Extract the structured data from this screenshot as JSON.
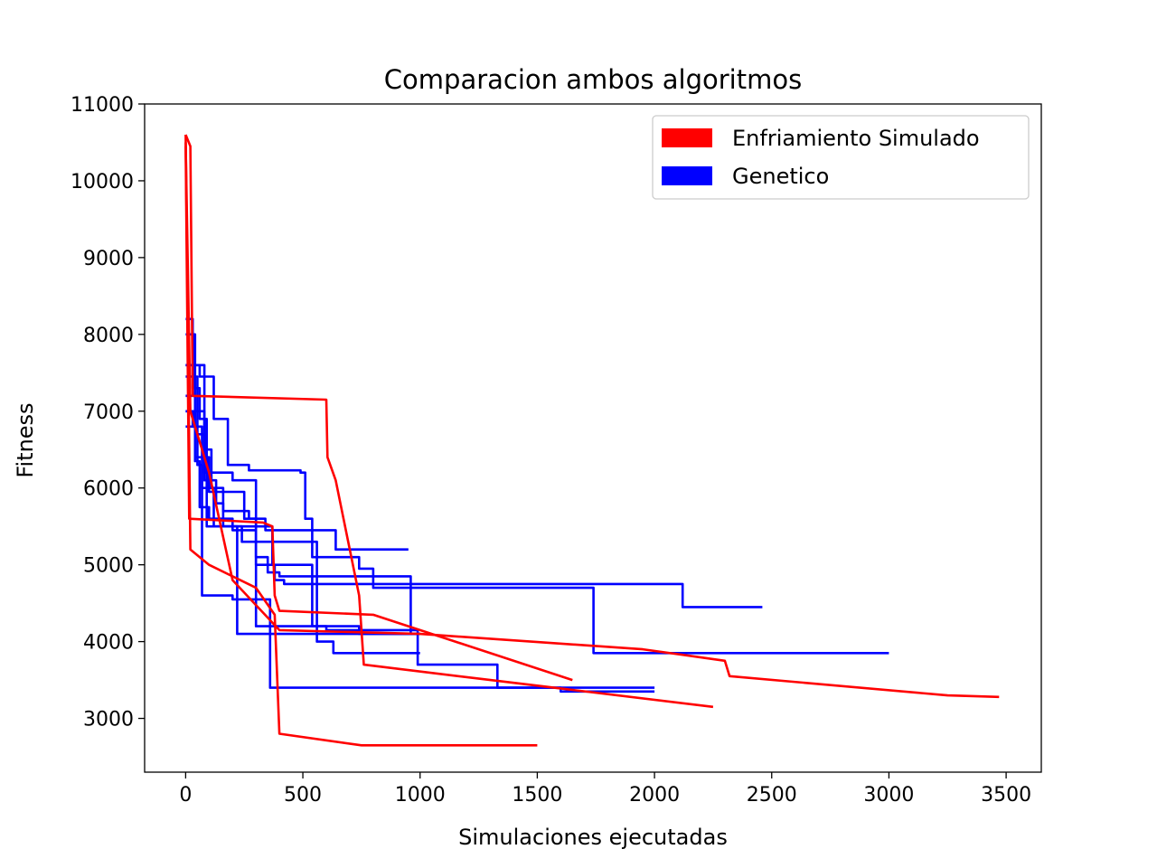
{
  "chart_data": {
    "type": "line",
    "title": "Comparacion ambos algoritmos",
    "xlabel": "Simulaciones ejecutadas",
    "ylabel": "Fitness",
    "xlim": [
      -175,
      3650
    ],
    "ylim": [
      2300,
      11000
    ],
    "xticks": [
      0,
      500,
      1000,
      1500,
      2000,
      2500,
      3000,
      3500
    ],
    "xtick_labels": [
      "0",
      "500",
      "1000",
      "1500",
      "2000",
      "2500",
      "3000",
      "3500"
    ],
    "yticks": [
      3000,
      4000,
      5000,
      6000,
      7000,
      8000,
      9000,
      10000,
      11000
    ],
    "ytick_labels": [
      "3000",
      "4000",
      "5000",
      "6000",
      "7000",
      "8000",
      "9000",
      "10000",
      "11000"
    ],
    "grid": false,
    "legend_position": "top-right",
    "legend": [
      {
        "label": "Enfriamiento Simulado",
        "color": "#ff0000"
      },
      {
        "label": "Genetico",
        "color": "#0000ff"
      }
    ],
    "series": [
      {
        "group": "Genetico",
        "color": "#0000ff",
        "points": [
          [
            0,
            6800
          ],
          [
            40,
            6800
          ],
          [
            40,
            6350
          ],
          [
            60,
            6350
          ],
          [
            60,
            5750
          ],
          [
            100,
            5750
          ],
          [
            100,
            5600
          ],
          [
            200,
            5600
          ],
          [
            200,
            5450
          ],
          [
            300,
            5450
          ],
          [
            300,
            5100
          ],
          [
            350,
            5100
          ],
          [
            350,
            4900
          ],
          [
            400,
            4900
          ],
          [
            400,
            4850
          ],
          [
            960,
            4850
          ],
          [
            960,
            4100
          ],
          [
            1000,
            4100
          ]
        ]
      },
      {
        "group": "Genetico",
        "color": "#0000ff",
        "points": [
          [
            0,
            7000
          ],
          [
            30,
            7000
          ],
          [
            30,
            6800
          ],
          [
            70,
            6800
          ],
          [
            70,
            6000
          ],
          [
            120,
            6000
          ],
          [
            120,
            5500
          ],
          [
            370,
            5500
          ],
          [
            370,
            5000
          ],
          [
            540,
            5000
          ],
          [
            540,
            4200
          ],
          [
            740,
            4200
          ],
          [
            740,
            4100
          ],
          [
            1000,
            4100
          ]
        ]
      },
      {
        "group": "Genetico",
        "color": "#0000ff",
        "points": [
          [
            0,
            7200
          ],
          [
            40,
            7200
          ],
          [
            40,
            6700
          ],
          [
            80,
            6700
          ],
          [
            80,
            6100
          ],
          [
            130,
            6100
          ],
          [
            130,
            5800
          ],
          [
            160,
            5800
          ],
          [
            160,
            5500
          ],
          [
            240,
            5500
          ],
          [
            240,
            5300
          ],
          [
            560,
            5300
          ],
          [
            560,
            4000
          ],
          [
            630,
            4000
          ],
          [
            630,
            3850
          ],
          [
            1000,
            3850
          ]
        ]
      },
      {
        "group": "Genetico",
        "color": "#0000ff",
        "points": [
          [
            0,
            8200
          ],
          [
            30,
            8200
          ],
          [
            30,
            7300
          ],
          [
            60,
            7300
          ],
          [
            60,
            6900
          ],
          [
            90,
            6900
          ],
          [
            90,
            5500
          ],
          [
            220,
            5500
          ],
          [
            220,
            4100
          ],
          [
            410,
            4100
          ],
          [
            410,
            4100
          ],
          [
            1000,
            4100
          ]
        ]
      },
      {
        "group": "Genetico",
        "color": "#0000ff",
        "points": [
          [
            0,
            7450
          ],
          [
            50,
            7450
          ],
          [
            50,
            7000
          ],
          [
            80,
            7000
          ],
          [
            80,
            6500
          ],
          [
            110,
            6500
          ],
          [
            110,
            6000
          ],
          [
            160,
            6000
          ],
          [
            160,
            5700
          ],
          [
            270,
            5700
          ],
          [
            270,
            5600
          ],
          [
            340,
            5600
          ],
          [
            340,
            5450
          ],
          [
            640,
            5450
          ],
          [
            640,
            5200
          ],
          [
            950,
            5200
          ]
        ]
      },
      {
        "group": "Genetico",
        "color": "#0000ff",
        "points": [
          [
            0,
            7600
          ],
          [
            60,
            7600
          ],
          [
            60,
            7450
          ],
          [
            120,
            7450
          ],
          [
            120,
            6900
          ],
          [
            180,
            6900
          ],
          [
            180,
            6300
          ],
          [
            270,
            6300
          ],
          [
            270,
            6230
          ],
          [
            490,
            6230
          ],
          [
            490,
            6200
          ],
          [
            510,
            6200
          ],
          [
            510,
            5600
          ],
          [
            540,
            5600
          ],
          [
            540,
            5100
          ],
          [
            740,
            5100
          ],
          [
            740,
            4950
          ],
          [
            800,
            4950
          ],
          [
            800,
            4700
          ],
          [
            1400,
            4700
          ],
          [
            1400,
            4700
          ],
          [
            1740,
            4700
          ],
          [
            1740,
            3850
          ],
          [
            3000,
            3850
          ]
        ]
      },
      {
        "group": "Genetico",
        "color": "#0000ff",
        "points": [
          [
            0,
            7600
          ],
          [
            80,
            7600
          ],
          [
            80,
            6200
          ],
          [
            200,
            6200
          ],
          [
            200,
            6100
          ],
          [
            300,
            6100
          ],
          [
            300,
            5000
          ],
          [
            380,
            5000
          ],
          [
            380,
            4800
          ],
          [
            420,
            4800
          ],
          [
            420,
            4750
          ],
          [
            2120,
            4750
          ],
          [
            2120,
            4450
          ],
          [
            2460,
            4450
          ]
        ]
      },
      {
        "group": "Genetico",
        "color": "#0000ff",
        "points": [
          [
            0,
            7000
          ],
          [
            50,
            7000
          ],
          [
            50,
            6300
          ],
          [
            70,
            6300
          ],
          [
            70,
            4600
          ],
          [
            200,
            4600
          ],
          [
            200,
            4550
          ],
          [
            360,
            4550
          ],
          [
            360,
            3400
          ],
          [
            2000,
            3400
          ]
        ]
      },
      {
        "group": "Genetico",
        "color": "#0000ff",
        "points": [
          [
            0,
            8000
          ],
          [
            40,
            8000
          ],
          [
            40,
            6400
          ],
          [
            100,
            6400
          ],
          [
            100,
            5950
          ],
          [
            250,
            5950
          ],
          [
            250,
            5600
          ],
          [
            300,
            5600
          ],
          [
            300,
            4200
          ],
          [
            600,
            4200
          ],
          [
            600,
            4150
          ],
          [
            990,
            4150
          ],
          [
            990,
            3700
          ],
          [
            1330,
            3700
          ],
          [
            1330,
            3400
          ],
          [
            1600,
            3400
          ],
          [
            1600,
            3350
          ],
          [
            2000,
            3350
          ]
        ]
      },
      {
        "group": "Enfriamiento Simulado",
        "color": "#ff0000",
        "points": [
          [
            0,
            10600
          ],
          [
            20,
            10450
          ],
          [
            30,
            7200
          ],
          [
            600,
            7150
          ],
          [
            605,
            6400
          ],
          [
            640,
            6100
          ],
          [
            740,
            4600
          ],
          [
            760,
            3700
          ],
          [
            1300,
            3500
          ],
          [
            2250,
            3150
          ]
        ]
      },
      {
        "group": "Enfriamiento Simulado",
        "color": "#ff0000",
        "points": [
          [
            0,
            10450
          ],
          [
            15,
            5600
          ],
          [
            330,
            5550
          ],
          [
            370,
            5500
          ],
          [
            380,
            4600
          ],
          [
            400,
            4400
          ],
          [
            800,
            4350
          ],
          [
            1650,
            3500
          ]
        ]
      },
      {
        "group": "Enfriamiento Simulado",
        "color": "#ff0000",
        "points": [
          [
            0,
            10600
          ],
          [
            20,
            5200
          ],
          [
            100,
            5000
          ],
          [
            300,
            4700
          ],
          [
            380,
            4350
          ],
          [
            400,
            2800
          ],
          [
            750,
            2650
          ],
          [
            1500,
            2650
          ]
        ]
      },
      {
        "group": "Enfriamiento Simulado",
        "color": "#ff0000",
        "points": [
          [
            0,
            10500
          ],
          [
            20,
            7000
          ],
          [
            100,
            6200
          ],
          [
            200,
            4800
          ],
          [
            400,
            4150
          ],
          [
            1000,
            4100
          ],
          [
            1950,
            3900
          ],
          [
            2300,
            3750
          ],
          [
            2320,
            3550
          ],
          [
            3250,
            3300
          ],
          [
            3470,
            3280
          ]
        ]
      }
    ]
  }
}
